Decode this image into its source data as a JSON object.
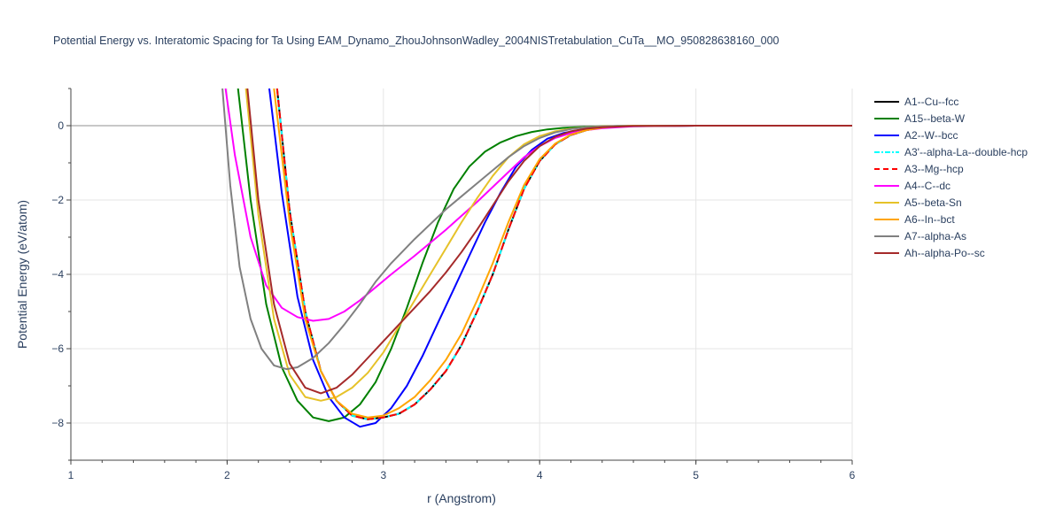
{
  "chart_data": {
    "type": "line",
    "title": "Potential Energy vs. Interatomic Spacing for Ta Using EAM_Dynamo_ZhouJohnsonWadley_2004NISTretabulation_CuTa__MO_950828638160_000",
    "xlabel": "r (Angstrom)",
    "ylabel": "Potential Energy (eV/atom)",
    "xlim": [
      1,
      6
    ],
    "ylim": [
      -9,
      1
    ],
    "xticks": [
      1,
      2,
      3,
      4,
      5,
      6
    ],
    "yticks": [
      -8,
      -6,
      -4,
      -2,
      0
    ],
    "grid": true,
    "legend_position": "top-right",
    "series": [
      {
        "name": "A1--Cu--fcc",
        "color": "#000000",
        "dash": "solid",
        "x": [
          2.32,
          2.4,
          2.5,
          2.6,
          2.7,
          2.8,
          2.9,
          3.0,
          3.1,
          3.2,
          3.3,
          3.4,
          3.5,
          3.6,
          3.7,
          3.8,
          3.9,
          4.0,
          4.1,
          4.2,
          4.3,
          4.4,
          4.5,
          4.6,
          5.0,
          6.0
        ],
        "y": [
          1.0,
          -2.3,
          -5.0,
          -6.6,
          -7.4,
          -7.8,
          -7.9,
          -7.85,
          -7.75,
          -7.5,
          -7.1,
          -6.6,
          -5.9,
          -5.0,
          -4.0,
          -2.8,
          -1.7,
          -0.95,
          -0.5,
          -0.25,
          -0.12,
          -0.05,
          -0.02,
          -0.005,
          0.0,
          0.0
        ]
      },
      {
        "name": "A15--beta-W",
        "color": "#008000",
        "dash": "solid",
        "x": [
          2.07,
          2.15,
          2.25,
          2.35,
          2.45,
          2.55,
          2.65,
          2.75,
          2.85,
          2.95,
          3.05,
          3.15,
          3.25,
          3.35,
          3.45,
          3.55,
          3.65,
          3.75,
          3.85,
          3.95,
          4.05,
          4.15,
          4.3,
          4.5,
          5.0,
          6.0
        ],
        "y": [
          1.0,
          -2.0,
          -4.8,
          -6.5,
          -7.4,
          -7.85,
          -7.95,
          -7.85,
          -7.5,
          -6.9,
          -6.0,
          -4.9,
          -3.7,
          -2.6,
          -1.7,
          -1.1,
          -0.7,
          -0.45,
          -0.28,
          -0.17,
          -0.1,
          -0.06,
          -0.03,
          -0.01,
          0.0,
          0.0
        ]
      },
      {
        "name": "A2--W--bcc",
        "color": "#0000ff",
        "dash": "solid",
        "x": [
          2.27,
          2.35,
          2.45,
          2.55,
          2.65,
          2.75,
          2.85,
          2.95,
          3.05,
          3.15,
          3.25,
          3.35,
          3.45,
          3.55,
          3.65,
          3.75,
          3.85,
          3.95,
          4.05,
          4.15,
          4.3,
          4.5,
          5.0,
          6.0
        ],
        "y": [
          1.0,
          -1.8,
          -4.6,
          -6.3,
          -7.3,
          -7.85,
          -8.1,
          -8.0,
          -7.6,
          -7.0,
          -6.2,
          -5.3,
          -4.4,
          -3.5,
          -2.6,
          -1.8,
          -1.1,
          -0.65,
          -0.35,
          -0.2,
          -0.08,
          -0.02,
          0.0,
          0.0
        ]
      },
      {
        "name": "A3'--alpha-La--double-hcp",
        "color": "#00ffff",
        "dash": "dashdot",
        "x": [
          2.32,
          2.4,
          2.5,
          2.6,
          2.7,
          2.8,
          2.9,
          3.0,
          3.1,
          3.2,
          3.3,
          3.4,
          3.5,
          3.6,
          3.7,
          3.8,
          3.9,
          4.0,
          4.1,
          4.2,
          4.3,
          4.4,
          4.5,
          4.6,
          5.0,
          6.0
        ],
        "y": [
          1.0,
          -2.3,
          -5.0,
          -6.6,
          -7.4,
          -7.8,
          -7.9,
          -7.85,
          -7.75,
          -7.5,
          -7.1,
          -6.6,
          -5.9,
          -5.0,
          -4.0,
          -2.8,
          -1.7,
          -0.95,
          -0.5,
          -0.25,
          -0.12,
          -0.05,
          -0.02,
          -0.005,
          0.0,
          0.0
        ]
      },
      {
        "name": "A3--Mg--hcp",
        "color": "#ff0000",
        "dash": "dash",
        "x": [
          2.32,
          2.4,
          2.5,
          2.6,
          2.7,
          2.8,
          2.9,
          3.0,
          3.1,
          3.2,
          3.3,
          3.4,
          3.5,
          3.6,
          3.7,
          3.8,
          3.9,
          4.0,
          4.1,
          4.2,
          4.3,
          4.4,
          4.5,
          4.6,
          5.0,
          6.0
        ],
        "y": [
          1.0,
          -2.3,
          -5.0,
          -6.6,
          -7.4,
          -7.8,
          -7.9,
          -7.85,
          -7.75,
          -7.5,
          -7.1,
          -6.6,
          -5.9,
          -5.0,
          -4.0,
          -2.8,
          -1.7,
          -0.95,
          -0.5,
          -0.25,
          -0.12,
          -0.05,
          -0.02,
          -0.005,
          0.0,
          0.0
        ]
      },
      {
        "name": "A4--C--dc",
        "color": "#ff00ff",
        "dash": "solid",
        "x": [
          1.99,
          2.05,
          2.15,
          2.25,
          2.35,
          2.45,
          2.55,
          2.65,
          2.75,
          2.85,
          2.95,
          3.05,
          3.2,
          3.4,
          3.6,
          3.8,
          3.9,
          4.0,
          4.1,
          4.2,
          4.3,
          4.4,
          4.6,
          5.0,
          6.0
        ],
        "y": [
          1.0,
          -0.8,
          -3.0,
          -4.3,
          -4.9,
          -5.15,
          -5.25,
          -5.2,
          -5.0,
          -4.7,
          -4.35,
          -4.0,
          -3.5,
          -2.8,
          -2.05,
          -1.25,
          -0.85,
          -0.55,
          -0.33,
          -0.2,
          -0.12,
          -0.07,
          -0.02,
          0.0,
          0.0
        ]
      },
      {
        "name": "A5--beta-Sn",
        "color": "#e6c229",
        "dash": "solid",
        "x": [
          2.12,
          2.2,
          2.3,
          2.4,
          2.5,
          2.6,
          2.7,
          2.8,
          2.9,
          3.0,
          3.1,
          3.2,
          3.3,
          3.4,
          3.5,
          3.6,
          3.7,
          3.8,
          3.9,
          4.0,
          4.1,
          4.2,
          4.3,
          4.4,
          4.6,
          5.0,
          6.0
        ],
        "y": [
          1.0,
          -2.4,
          -5.2,
          -6.7,
          -7.3,
          -7.4,
          -7.3,
          -7.05,
          -6.65,
          -6.1,
          -5.4,
          -4.7,
          -4.0,
          -3.3,
          -2.6,
          -1.95,
          -1.35,
          -0.85,
          -0.5,
          -0.28,
          -0.15,
          -0.08,
          -0.04,
          -0.02,
          0.0,
          0.0,
          0.0
        ]
      },
      {
        "name": "A6--In--bct",
        "color": "#ffa500",
        "dash": "solid",
        "x": [
          2.3,
          2.4,
          2.5,
          2.6,
          2.7,
          2.8,
          2.9,
          3.0,
          3.1,
          3.2,
          3.3,
          3.4,
          3.5,
          3.6,
          3.7,
          3.8,
          3.9,
          4.0,
          4.1,
          4.2,
          4.3,
          4.4,
          4.5,
          4.6,
          5.0,
          6.0
        ],
        "y": [
          1.0,
          -2.6,
          -5.2,
          -6.6,
          -7.4,
          -7.75,
          -7.85,
          -7.8,
          -7.6,
          -7.3,
          -6.85,
          -6.3,
          -5.6,
          -4.7,
          -3.7,
          -2.6,
          -1.6,
          -0.9,
          -0.48,
          -0.24,
          -0.12,
          -0.05,
          -0.02,
          -0.005,
          0.0,
          0.0
        ]
      },
      {
        "name": "A7--alpha-As",
        "color": "#808080",
        "dash": "solid",
        "x": [
          1.97,
          2.02,
          2.08,
          2.15,
          2.22,
          2.3,
          2.38,
          2.45,
          2.55,
          2.65,
          2.75,
          2.85,
          2.95,
          3.05,
          3.2,
          3.3,
          3.4,
          3.5,
          3.6,
          3.7,
          3.8,
          3.9,
          4.0,
          4.1,
          4.2,
          4.3,
          4.5,
          5.0,
          6.0
        ],
        "y": [
          1.0,
          -1.6,
          -3.8,
          -5.2,
          -6.0,
          -6.45,
          -6.55,
          -6.5,
          -6.25,
          -5.85,
          -5.35,
          -4.8,
          -4.2,
          -3.7,
          -3.05,
          -2.65,
          -2.25,
          -1.9,
          -1.55,
          -1.2,
          -0.85,
          -0.55,
          -0.33,
          -0.18,
          -0.09,
          -0.04,
          -0.01,
          0.0,
          0.0
        ]
      },
      {
        "name": "Ah--alpha-Po--sc",
        "color": "#a52a2a",
        "dash": "solid",
        "x": [
          2.13,
          2.2,
          2.3,
          2.4,
          2.5,
          2.6,
          2.7,
          2.8,
          2.9,
          3.0,
          3.1,
          3.2,
          3.3,
          3.4,
          3.5,
          3.6,
          3.7,
          3.8,
          3.9,
          4.0,
          4.1,
          4.2,
          4.3,
          4.4,
          4.6,
          5.0,
          6.0
        ],
        "y": [
          1.0,
          -2.0,
          -4.8,
          -6.4,
          -7.05,
          -7.2,
          -7.05,
          -6.7,
          -6.25,
          -5.8,
          -5.35,
          -4.9,
          -4.45,
          -3.95,
          -3.4,
          -2.8,
          -2.15,
          -1.5,
          -0.95,
          -0.55,
          -0.3,
          -0.15,
          -0.08,
          -0.04,
          -0.01,
          0.0,
          0.0
        ]
      }
    ]
  }
}
